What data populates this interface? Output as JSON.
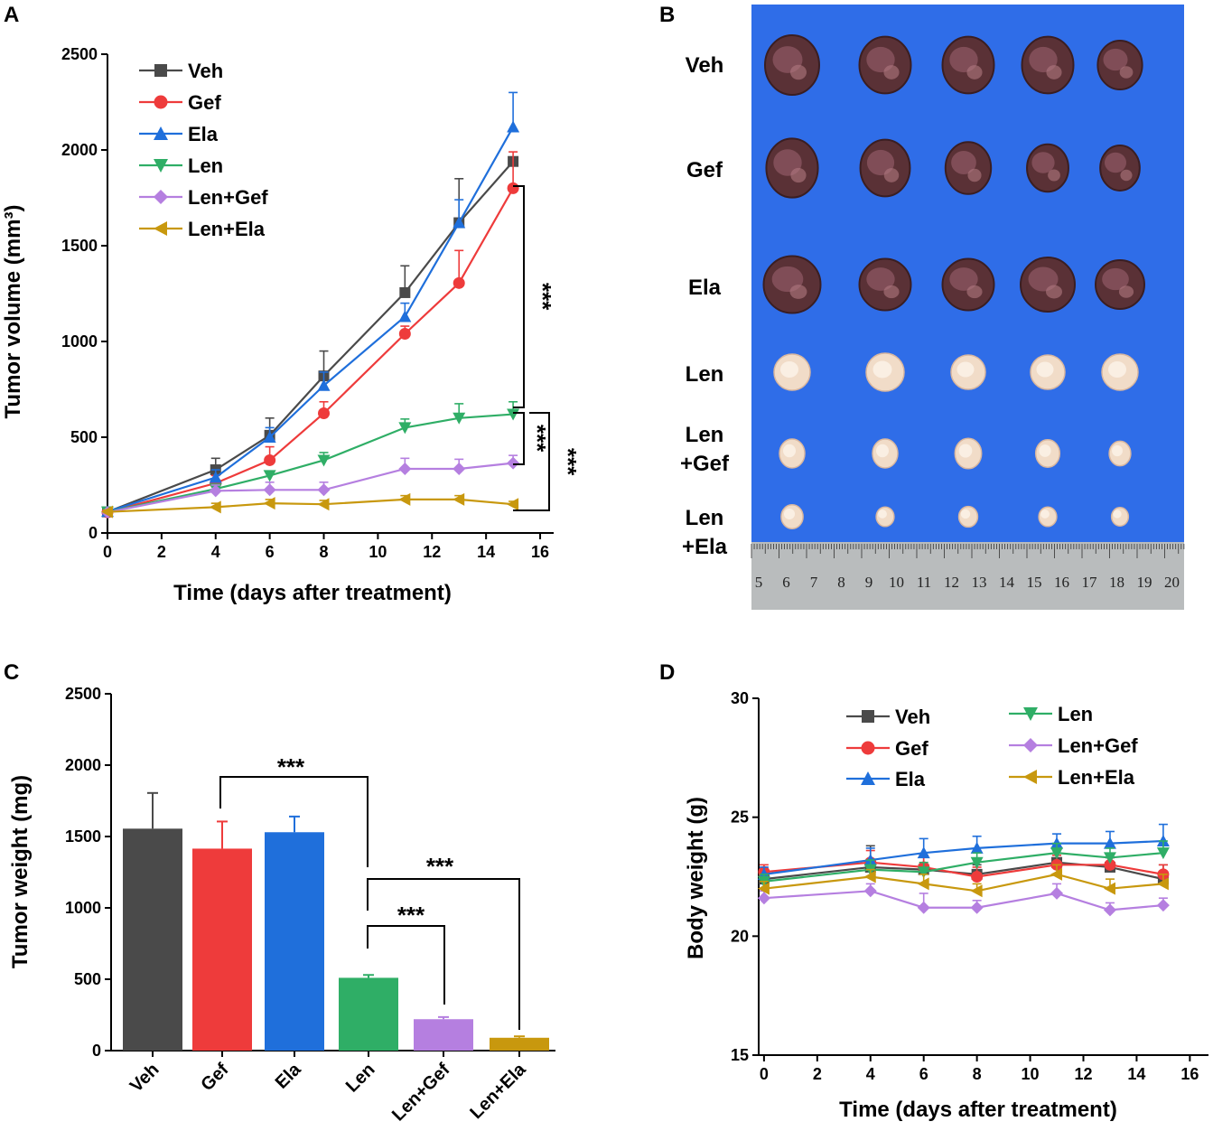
{
  "panels": {
    "A": {
      "letter": "A"
    },
    "B": {
      "letter": "B"
    },
    "C": {
      "letter": "C"
    },
    "D": {
      "letter": "D"
    }
  },
  "colors": {
    "Veh": "#4a4a4a",
    "Gef": "#ee3b3b",
    "Ela": "#1f6fdb",
    "Len": "#2fae66",
    "LenGef": "#b57fe0",
    "LenEla": "#c8980e"
  },
  "chart_data": [
    {
      "id": "A",
      "type": "line",
      "title": "",
      "xlabel": "Time (days after treatment)",
      "ylabel": "Tumor volume (mm³)",
      "xlim": [
        0,
        16.5
      ],
      "ylim": [
        0,
        2500
      ],
      "xticks": [
        "0",
        "2",
        "4",
        "6",
        "8",
        "10",
        "12",
        "14",
        "16"
      ],
      "yticks": [
        "0",
        "500",
        "1000",
        "1500",
        "2000",
        "2500"
      ],
      "legend_position": "top-left",
      "x": [
        0,
        4,
        6,
        8,
        11,
        13,
        15
      ],
      "series": [
        {
          "name": "Veh",
          "marker": "square",
          "values": [
            110,
            330,
            510,
            820,
            1255,
            1620,
            1940
          ],
          "errors": [
            15,
            60,
            90,
            130,
            140,
            230,
            20
          ]
        },
        {
          "name": "Gef",
          "marker": "circle",
          "values": [
            108,
            260,
            380,
            625,
            1040,
            1305,
            1800
          ],
          "errors": [
            15,
            40,
            70,
            60,
            40,
            170,
            190
          ]
        },
        {
          "name": "Ela",
          "marker": "triangle-up",
          "values": [
            112,
            290,
            500,
            770,
            1130,
            1620,
            2120
          ],
          "errors": [
            15,
            40,
            50,
            70,
            70,
            120,
            180
          ]
        },
        {
          "name": "Len",
          "marker": "triangle-down",
          "values": [
            110,
            230,
            300,
            380,
            550,
            600,
            620
          ],
          "errors": [
            10,
            20,
            20,
            40,
            45,
            75,
            65
          ]
        },
        {
          "name": "Len+Gef",
          "marker": "diamond",
          "values": [
            108,
            220,
            225,
            225,
            335,
            335,
            365
          ],
          "errors": [
            10,
            30,
            40,
            40,
            55,
            50,
            40
          ]
        },
        {
          "name": "Len+Ela",
          "marker": "triangle-left",
          "values": [
            110,
            135,
            155,
            150,
            175,
            175,
            150
          ],
          "errors": [
            10,
            20,
            20,
            20,
            20,
            20,
            15
          ]
        }
      ],
      "annotations": [
        "***",
        "***",
        "***"
      ]
    },
    {
      "id": "C",
      "type": "bar",
      "title": "",
      "xlabel": "",
      "ylabel": "Tumor weight (mg)",
      "ylim": [
        0,
        2500
      ],
      "yticks": [
        "0",
        "500",
        "1000",
        "1500",
        "2000",
        "2500"
      ],
      "categories": [
        "Veh",
        "Gef",
        "Ela",
        "Len",
        "Len+Gef",
        "Len+Ela"
      ],
      "values": [
        1555,
        1415,
        1530,
        510,
        220,
        90
      ],
      "errors": [
        250,
        190,
        110,
        20,
        15,
        10
      ],
      "annotations": [
        "***",
        "***",
        "***"
      ]
    },
    {
      "id": "D",
      "type": "line",
      "title": "",
      "xlabel": "Time (days after treatment)",
      "ylabel": "Body weight (g)",
      "xlim": [
        -0.2,
        16.7
      ],
      "ylim": [
        15,
        30
      ],
      "xticks": [
        "0",
        "2",
        "4",
        "6",
        "8",
        "10",
        "12",
        "14",
        "16"
      ],
      "yticks": [
        "15",
        "20",
        "25",
        "30"
      ],
      "legend_position": "top",
      "x": [
        0,
        4,
        6,
        8,
        11,
        13,
        15
      ],
      "series": [
        {
          "name": "Veh",
          "marker": "square",
          "values": [
            22.4,
            22.9,
            22.8,
            22.6,
            23.1,
            22.9,
            22.4
          ],
          "errors": [
            0.4,
            0.9,
            0.6,
            0.4,
            0.5,
            0.4,
            0.6
          ]
        },
        {
          "name": "Gef",
          "marker": "circle",
          "values": [
            22.7,
            23.1,
            22.9,
            22.5,
            23.0,
            23.0,
            22.6
          ],
          "errors": [
            0.3,
            0.5,
            0.5,
            0.4,
            0.4,
            0.3,
            0.4
          ]
        },
        {
          "name": "Ela",
          "marker": "triangle-up",
          "values": [
            22.6,
            23.2,
            23.5,
            23.7,
            23.9,
            23.9,
            24.0
          ],
          "errors": [
            0.3,
            0.5,
            0.6,
            0.5,
            0.4,
            0.5,
            0.7
          ]
        },
        {
          "name": "Len",
          "marker": "triangle-down",
          "values": [
            22.3,
            22.8,
            22.7,
            23.1,
            23.5,
            23.3,
            23.5
          ],
          "errors": [
            0.3,
            0.4,
            0.4,
            0.4,
            0.4,
            0.4,
            0.5
          ]
        },
        {
          "name": "Len+Gef",
          "marker": "diamond",
          "values": [
            21.6,
            21.9,
            21.2,
            21.2,
            21.8,
            21.1,
            21.3
          ],
          "errors": [
            0.3,
            0.3,
            0.6,
            0.3,
            0.4,
            0.3,
            0.3
          ]
        },
        {
          "name": "Len+Ela",
          "marker": "triangle-left",
          "values": [
            22.0,
            22.5,
            22.2,
            21.9,
            22.6,
            22.0,
            22.2
          ],
          "errors": [
            0.3,
            0.3,
            0.4,
            0.3,
            0.4,
            0.4,
            0.4
          ]
        }
      ]
    }
  ],
  "photo": {
    "rows": [
      "Veh",
      "Gef",
      "Ela",
      "Len"
    ],
    "rows_two_line": [
      [
        "Len",
        "+Gef"
      ],
      [
        "Len",
        "+Ela"
      ]
    ],
    "ruler_numbers": [
      "5",
      "6",
      "7",
      "8",
      "9",
      "10",
      "11",
      "12",
      "13",
      "14",
      "15",
      "16",
      "17",
      "18",
      "19",
      "20"
    ]
  }
}
